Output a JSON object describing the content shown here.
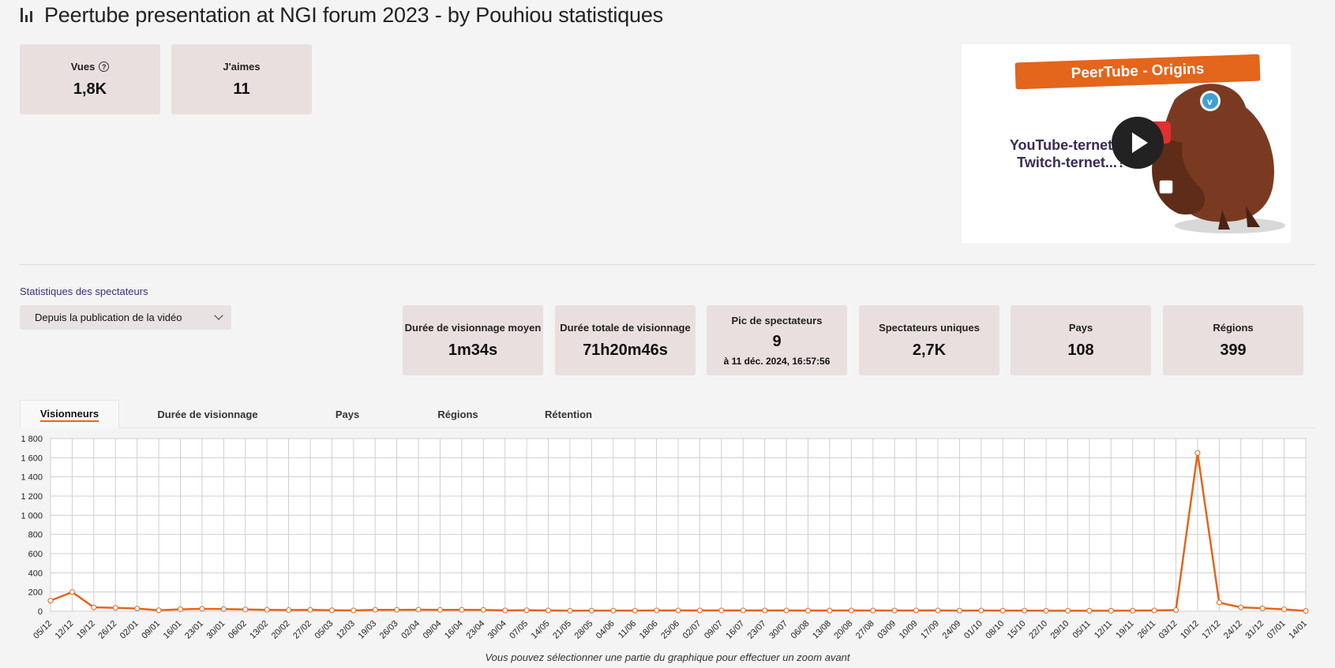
{
  "header": {
    "title": "Peertube presentation at NGI forum 2023 - by Pouhiou statistiques"
  },
  "top_cards": [
    {
      "label": "Vues",
      "value": "1,8K",
      "has_help": true
    },
    {
      "label": "J'aimes",
      "value": "11"
    }
  ],
  "thumbnail": {
    "banner": "PeerTube - Origins",
    "text_line1": "YouTube-ternet...?",
    "text_line2": "Twitch-ternet...?",
    "play_icon": "play-icon"
  },
  "viewers": {
    "section_label": "Statistiques des spectateurs",
    "period_select": "Depuis la publication de la vidéo",
    "cards": [
      {
        "label": "Durée de visionnage moyen",
        "value": "1m34s",
        "sub": ""
      },
      {
        "label": "Durée totale de visionnage",
        "value": "71h20m46s",
        "sub": ""
      },
      {
        "label": "Pic de spectateurs",
        "value": "9",
        "sub": "à 11 déc. 2024, 16:57:56"
      },
      {
        "label": "Spectateurs uniques",
        "value": "2,7K",
        "sub": ""
      },
      {
        "label": "Pays",
        "value": "108",
        "sub": ""
      },
      {
        "label": "Régions",
        "value": "399",
        "sub": ""
      }
    ]
  },
  "tabs": [
    {
      "label": "Visionneurs",
      "active": true
    },
    {
      "label": "Durée de visionnage",
      "active": false
    },
    {
      "label": "Pays",
      "active": false
    },
    {
      "label": "Régions",
      "active": false
    },
    {
      "label": "Rétention",
      "active": false
    }
  ],
  "chart_data": {
    "type": "line",
    "title": "",
    "xlabel": "",
    "ylabel": "",
    "ylim": [
      0,
      1800
    ],
    "yticks": [
      "0",
      "200",
      "400",
      "600",
      "800",
      "1 000",
      "1 200",
      "1 400",
      "1 600",
      "1 800"
    ],
    "grid": true,
    "color": "#e4651c",
    "categories": [
      "05/12",
      "12/12",
      "19/12",
      "26/12",
      "02/01",
      "09/01",
      "16/01",
      "23/01",
      "30/01",
      "06/02",
      "13/02",
      "20/02",
      "27/02",
      "05/03",
      "12/03",
      "19/03",
      "26/03",
      "02/04",
      "09/04",
      "16/04",
      "23/04",
      "30/04",
      "07/05",
      "14/05",
      "21/05",
      "28/05",
      "04/06",
      "11/06",
      "18/06",
      "25/06",
      "02/07",
      "09/07",
      "16/07",
      "23/07",
      "30/07",
      "06/08",
      "13/08",
      "20/08",
      "27/08",
      "03/09",
      "10/09",
      "17/09",
      "24/09",
      "01/10",
      "08/10",
      "15/10",
      "22/10",
      "29/10",
      "05/11",
      "12/11",
      "19/11",
      "26/11",
      "03/12",
      "10/12",
      "17/12",
      "24/12",
      "31/12",
      "07/01",
      "14/01"
    ],
    "values": [
      110,
      200,
      40,
      35,
      28,
      10,
      20,
      25,
      22,
      18,
      15,
      12,
      14,
      10,
      8,
      15,
      14,
      16,
      14,
      14,
      13,
      8,
      10,
      8,
      5,
      6,
      6,
      6,
      8,
      8,
      8,
      8,
      8,
      8,
      8,
      7,
      7,
      8,
      7,
      7,
      8,
      8,
      6,
      7,
      6,
      6,
      5,
      5,
      5,
      5,
      6,
      8,
      12,
      1650,
      90,
      40,
      30,
      20,
      3
    ]
  },
  "hint": "Vous pouvez sélectionner une partie du graphique pour effectuer un zoom avant"
}
